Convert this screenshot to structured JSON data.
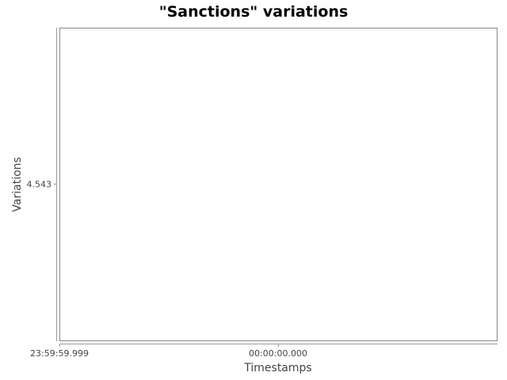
{
  "chart_data": {
    "type": "line",
    "title": "\"Sanctions\" variations",
    "xlabel": "Timestamps",
    "ylabel": "Variations",
    "x_ticks": [
      "23:59:59.999",
      "00:00:00.000"
    ],
    "y_ticks": [
      "4.543"
    ],
    "series": [],
    "grid": false,
    "legend": "none"
  }
}
